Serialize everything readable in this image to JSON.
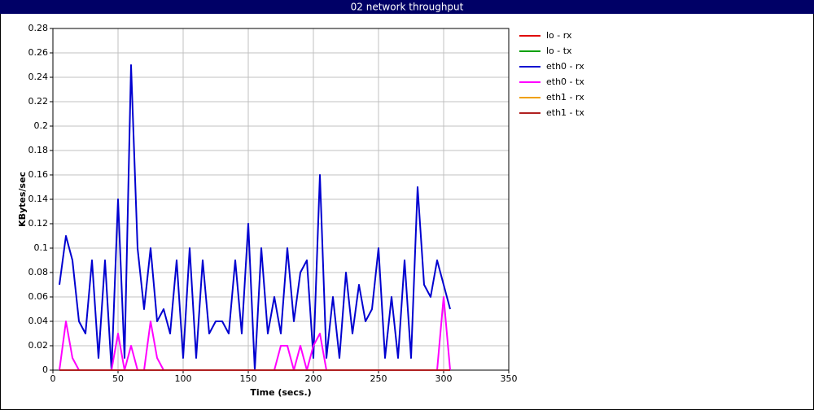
{
  "chart_data": {
    "type": "line",
    "title": "02 network throughput",
    "x_label": "Time (secs.)",
    "y_label": "KBytes/sec",
    "x": [
      5,
      10,
      15,
      20,
      25,
      30,
      35,
      40,
      45,
      50,
      55,
      60,
      65,
      70,
      75,
      80,
      85,
      90,
      95,
      100,
      105,
      110,
      115,
      120,
      125,
      130,
      135,
      140,
      145,
      150,
      155,
      160,
      165,
      170,
      175,
      180,
      185,
      190,
      195,
      200,
      205,
      210,
      215,
      220,
      225,
      230,
      235,
      240,
      245,
      250,
      255,
      260,
      265,
      270,
      275,
      280,
      285,
      290,
      295,
      300,
      305
    ],
    "xlim": [
      0,
      350
    ],
    "xticks": [
      0,
      50,
      100,
      150,
      200,
      250,
      300,
      350
    ],
    "ylim": [
      0,
      0.28
    ],
    "yticks": [
      0,
      0.02,
      0.04,
      0.06,
      0.08,
      0.1,
      0.12,
      0.14,
      0.16,
      0.18,
      0.2,
      0.22,
      0.24,
      0.26,
      0.28
    ],
    "grid": true,
    "legend": "right",
    "series": [
      {
        "name": "lo - rx",
        "color": "#e00000",
        "values": [
          0,
          0,
          0,
          0,
          0,
          0,
          0,
          0,
          0,
          0,
          0,
          0,
          0,
          0,
          0,
          0,
          0,
          0,
          0,
          0,
          0,
          0,
          0,
          0,
          0,
          0,
          0,
          0,
          0,
          0,
          0,
          0,
          0,
          0,
          0,
          0,
          0,
          0,
          0,
          0,
          0,
          0,
          0,
          0,
          0,
          0,
          0,
          0,
          0,
          0,
          0,
          0,
          0,
          0,
          0,
          0,
          0,
          0,
          0,
          0,
          0
        ]
      },
      {
        "name": "lo - tx",
        "color": "#00a000",
        "values": [
          0,
          0,
          0,
          0,
          0,
          0,
          0,
          0,
          0,
          0,
          0,
          0,
          0,
          0,
          0,
          0,
          0,
          0,
          0,
          0,
          0,
          0,
          0,
          0,
          0,
          0,
          0,
          0,
          0,
          0,
          0,
          0,
          0,
          0,
          0,
          0,
          0,
          0,
          0,
          0,
          0,
          0,
          0,
          0,
          0,
          0,
          0,
          0,
          0,
          0,
          0,
          0,
          0,
          0,
          0,
          0,
          0,
          0,
          0,
          0,
          0
        ]
      },
      {
        "name": "eth0 - rx",
        "color": "#0000d0",
        "values": [
          0.07,
          0.11,
          0.09,
          0.04,
          0.03,
          0.09,
          0.01,
          0.09,
          0,
          0.14,
          0.01,
          0.25,
          0.1,
          0.05,
          0.1,
          0.04,
          0.05,
          0.03,
          0.09,
          0.01,
          0.1,
          0.01,
          0.09,
          0.03,
          0.04,
          0.04,
          0.03,
          0.09,
          0.03,
          0.12,
          0,
          0.1,
          0.03,
          0.06,
          0.03,
          0.1,
          0.04,
          0.08,
          0.09,
          0.01,
          0.16,
          0.01,
          0.06,
          0.01,
          0.08,
          0.03,
          0.07,
          0.04,
          0.05,
          0.1,
          0.01,
          0.06,
          0.01,
          0.09,
          0.01,
          0.15,
          0.07,
          0.06,
          0.09,
          0.07,
          0.05
        ]
      },
      {
        "name": "eth0 - tx",
        "color": "#ff00ff",
        "values": [
          0,
          0.04,
          0.01,
          0,
          0,
          0,
          0,
          0,
          0,
          0.03,
          0,
          0.02,
          0,
          0,
          0.04,
          0.01,
          0,
          0,
          0,
          0,
          0,
          0,
          0,
          0,
          0,
          0,
          0,
          0,
          0,
          0,
          0,
          0,
          0,
          0,
          0.02,
          0.02,
          0,
          0.02,
          0,
          0.02,
          0.03,
          0,
          0,
          0,
          0,
          0,
          0,
          0,
          0,
          0,
          0,
          0,
          0,
          0,
          0,
          0,
          0,
          0,
          0,
          0.06,
          0
        ]
      },
      {
        "name": "eth1 - rx",
        "color": "#f0a000",
        "values": [
          0,
          0,
          0,
          0,
          0,
          0,
          0,
          0,
          0,
          0,
          0,
          0,
          0,
          0,
          0,
          0,
          0,
          0,
          0,
          0,
          0,
          0,
          0,
          0,
          0,
          0,
          0,
          0,
          0,
          0,
          0,
          0,
          0,
          0,
          0,
          0,
          0,
          0,
          0,
          0,
          0,
          0,
          0,
          0,
          0,
          0,
          0,
          0,
          0,
          0,
          0,
          0,
          0,
          0,
          0,
          0,
          0,
          0,
          0,
          0,
          0
        ]
      },
      {
        "name": "eth1 - tx",
        "color": "#b02020",
        "values": [
          0,
          0,
          0,
          0,
          0,
          0,
          0,
          0,
          0,
          0,
          0,
          0,
          0,
          0,
          0,
          0,
          0,
          0,
          0,
          0,
          0,
          0,
          0,
          0,
          0,
          0,
          0,
          0,
          0,
          0,
          0,
          0,
          0,
          0,
          0,
          0,
          0,
          0,
          0,
          0,
          0,
          0,
          0,
          0,
          0,
          0,
          0,
          0,
          0,
          0,
          0,
          0,
          0,
          0,
          0,
          0,
          0,
          0,
          0,
          0,
          0
        ]
      }
    ]
  }
}
